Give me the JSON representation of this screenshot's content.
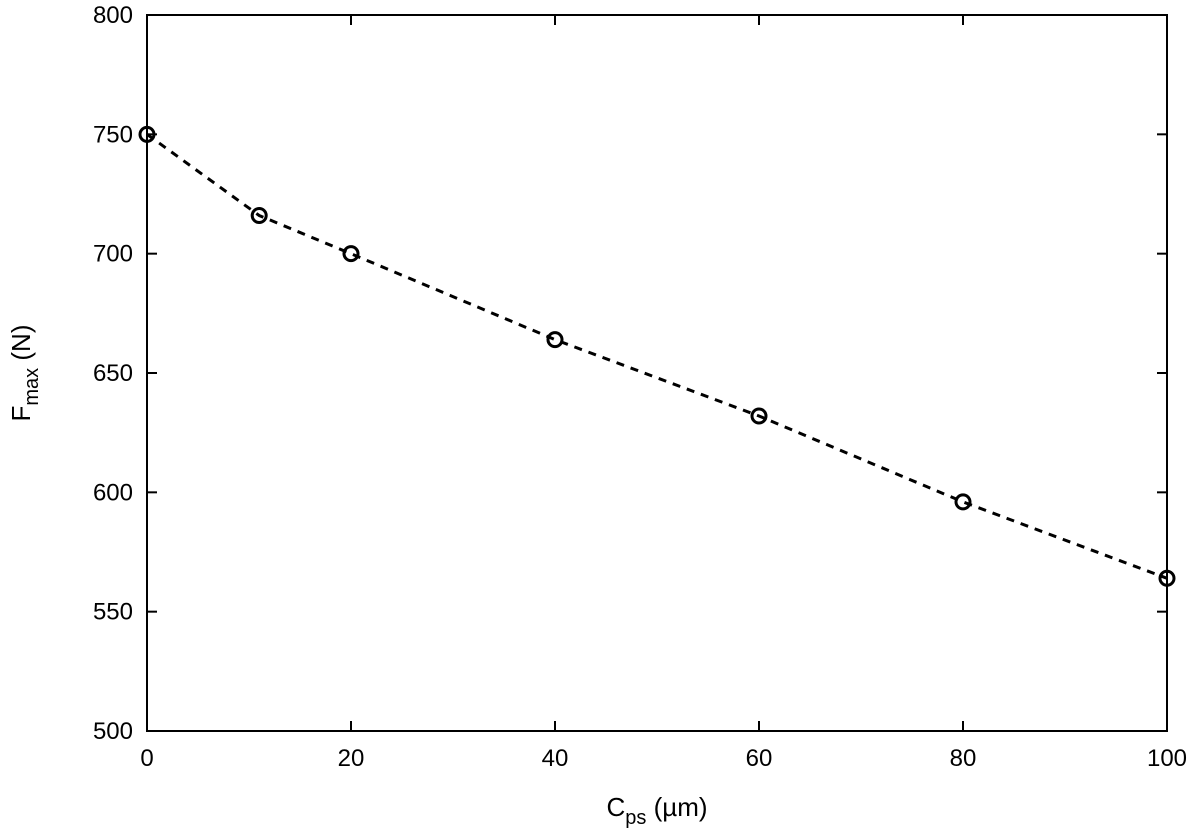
{
  "chart_data": {
    "type": "line",
    "title": "",
    "xlabel": {
      "main": "C",
      "sub": "ps",
      "unit": " (µm)"
    },
    "ylabel": {
      "main": "F",
      "sub": "max",
      "unit": " (N)"
    },
    "xlim": [
      0,
      100
    ],
    "ylim": [
      500,
      800
    ],
    "x_ticks": [
      0,
      20,
      40,
      60,
      80,
      100
    ],
    "y_ticks": [
      500,
      550,
      600,
      650,
      700,
      750,
      800
    ],
    "grid": false,
    "legend": "none",
    "series": [
      {
        "x": [
          0,
          11,
          20,
          40,
          60,
          80,
          100
        ],
        "y": [
          750,
          716,
          700,
          664,
          632,
          596,
          564
        ],
        "marker": "open-circle",
        "line_style": "dashed",
        "color": "#000000"
      }
    ]
  }
}
